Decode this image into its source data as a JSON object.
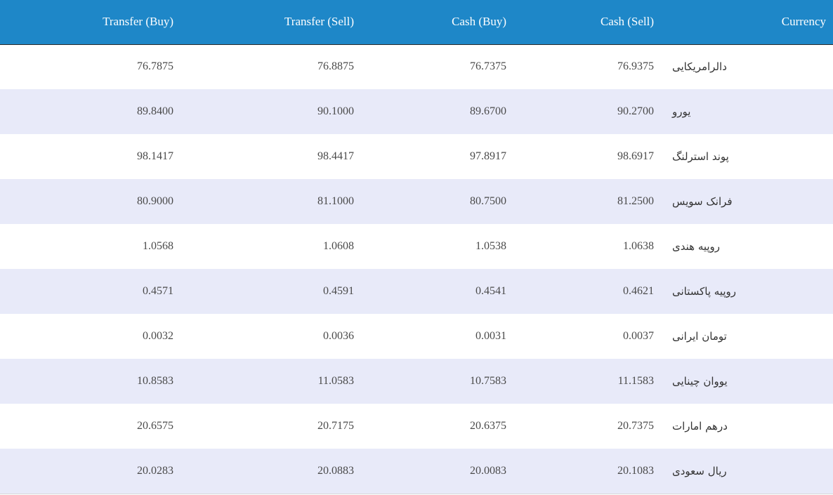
{
  "table": {
    "headers": {
      "transfer_buy": "Transfer (Buy)",
      "transfer_sell": "Transfer (Sell)",
      "cash_buy": "Cash (Buy)",
      "cash_sell": "Cash (Sell)",
      "currency": "Currency"
    },
    "rows": [
      {
        "transfer_buy": "76.7875",
        "transfer_sell": "76.8875",
        "cash_buy": "76.7375",
        "cash_sell": "76.9375",
        "currency": "دالرامریکایی"
      },
      {
        "transfer_buy": "89.8400",
        "transfer_sell": "90.1000",
        "cash_buy": "89.6700",
        "cash_sell": "90.2700",
        "currency": "یورو"
      },
      {
        "transfer_buy": "98.1417",
        "transfer_sell": "98.4417",
        "cash_buy": "97.8917",
        "cash_sell": "98.6917",
        "currency": "پوند استرلنگ"
      },
      {
        "transfer_buy": "80.9000",
        "transfer_sell": "81.1000",
        "cash_buy": "80.7500",
        "cash_sell": "81.2500",
        "currency": "فرانک سویس"
      },
      {
        "transfer_buy": "1.0568",
        "transfer_sell": "1.0608",
        "cash_buy": "1.0538",
        "cash_sell": "1.0638",
        "currency": "روپیه هندی"
      },
      {
        "transfer_buy": "0.4571",
        "transfer_sell": "0.4591",
        "cash_buy": "0.4541",
        "cash_sell": "0.4621",
        "currency": "روپیه پاکستانی"
      },
      {
        "transfer_buy": "0.0032",
        "transfer_sell": "0.0036",
        "cash_buy": "0.0031",
        "cash_sell": "0.0037",
        "currency": "تومان ایرانی"
      },
      {
        "transfer_buy": "10.8583",
        "transfer_sell": "11.0583",
        "cash_buy": "10.7583",
        "cash_sell": "11.1583",
        "currency": "یووان چینایی"
      },
      {
        "transfer_buy": "20.6575",
        "transfer_sell": "20.7175",
        "cash_buy": "20.6375",
        "cash_sell": "20.7375",
        "currency": "درهم امارات"
      },
      {
        "transfer_buy": "20.0283",
        "transfer_sell": "20.0883",
        "cash_buy": "20.0083",
        "cash_sell": "20.1083",
        "currency": "ریال سعودی"
      }
    ]
  },
  "colors": {
    "header_background": "#1e87c8",
    "header_text": "#ffffff",
    "stripe_row": "#e8eaf9",
    "plain_row": "#ffffff"
  }
}
